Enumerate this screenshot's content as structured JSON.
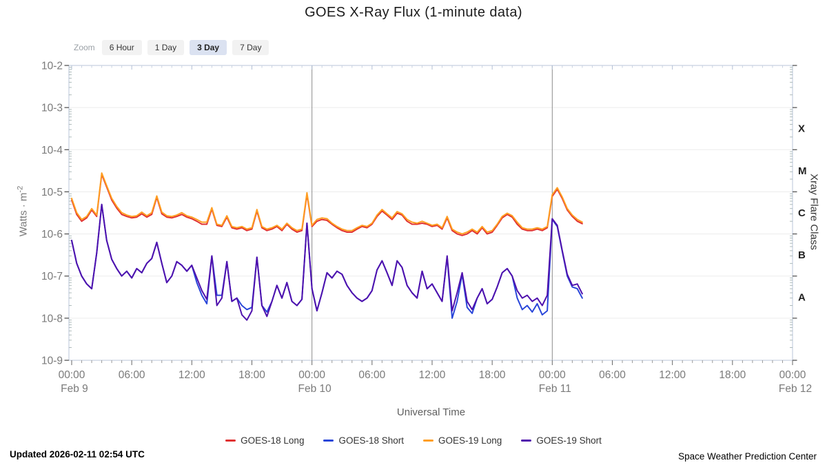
{
  "title": "GOES X-Ray Flux (1-minute data)",
  "zoom_controls": {
    "label": "Zoom",
    "options": [
      "6 Hour",
      "1 Day",
      "3 Day",
      "7 Day"
    ],
    "active": "3 Day"
  },
  "chart_data": {
    "type": "line",
    "title": "GOES X-Ray Flux (1-minute data)",
    "xlabel": "Universal Time",
    "ylabel": "Watts · m",
    "ylabel_exponent": "-2",
    "ylim": [
      1e-09,
      0.01
    ],
    "x_range_hours": [
      0,
      72
    ],
    "x_start_hours": 0,
    "x_step_hours": 0.5,
    "grid": "horizontal-decades",
    "legend_position": "bottom",
    "day_boundary_hours": [
      24,
      48
    ],
    "y_ticks": [
      {
        "label": "10-2",
        "exp": -2
      },
      {
        "label": "10-3",
        "exp": -3
      },
      {
        "label": "10-4",
        "exp": -4
      },
      {
        "label": "10-5",
        "exp": -5
      },
      {
        "label": "10-6",
        "exp": -6
      },
      {
        "label": "10-7",
        "exp": -7
      },
      {
        "label": "10-8",
        "exp": -8
      },
      {
        "label": "10-9",
        "exp": -9
      }
    ],
    "x_ticks": [
      {
        "hour": 0,
        "label": "00:00",
        "date": "Feb 9"
      },
      {
        "hour": 6,
        "label": "06:00"
      },
      {
        "hour": 12,
        "label": "12:00"
      },
      {
        "hour": 18,
        "label": "18:00"
      },
      {
        "hour": 24,
        "label": "00:00",
        "date": "Feb 10"
      },
      {
        "hour": 30,
        "label": "06:00"
      },
      {
        "hour": 36,
        "label": "12:00"
      },
      {
        "hour": 42,
        "label": "18:00"
      },
      {
        "hour": 48,
        "label": "00:00",
        "date": "Feb 11"
      },
      {
        "hour": 54,
        "label": "06:00"
      },
      {
        "hour": 60,
        "label": "12:00"
      },
      {
        "hour": 66,
        "label": "18:00"
      },
      {
        "hour": 72,
        "label": "00:00",
        "date": "Feb 12"
      }
    ],
    "right_axis": {
      "label": "Xray Flare Class",
      "classes": [
        {
          "label": "X",
          "log_center": -3.5
        },
        {
          "label": "M",
          "log_center": -4.5
        },
        {
          "label": "C",
          "log_center": -5.5
        },
        {
          "label": "B",
          "log_center": -6.5
        },
        {
          "label": "A",
          "log_center": -7.5
        }
      ]
    },
    "series": [
      {
        "name": "GOES-18 Long",
        "color": "#e03131",
        "values": [
          6.4e-06,
          2.9e-06,
          2e-06,
          2.4e-06,
          3.7e-06,
          2.6e-06,
          2.6e-05,
          1.3e-05,
          6.4e-06,
          4.1e-06,
          2.9e-06,
          2.6e-06,
          2.4e-06,
          2.5e-06,
          3e-06,
          2.5e-06,
          2.9e-06,
          7.4e-06,
          3e-06,
          2.5e-06,
          2.4e-06,
          2.6e-06,
          2.9e-06,
          2.5e-06,
          2.3e-06,
          2e-06,
          1.7e-06,
          1.7e-06,
          3.9e-06,
          1.6e-06,
          1.5e-06,
          2.5e-06,
          1.4e-06,
          1.3e-06,
          1.4e-06,
          1.2e-06,
          1.3e-06,
          3.5e-06,
          1.4e-06,
          1.2e-06,
          1.3e-06,
          1.5e-06,
          1.2e-06,
          1.7e-06,
          1.3e-06,
          1.1e-06,
          1.2e-06,
          8.7e-06,
          1.5e-06,
          2e-06,
          2.2e-06,
          2.1e-06,
          1.7e-06,
          1.4e-06,
          1.2e-06,
          1.1e-06,
          1.1e-06,
          1.3e-06,
          1.5e-06,
          1.4e-06,
          1.7e-06,
          2.6e-06,
          3.5e-06,
          2.8e-06,
          2.2e-06,
          3.1e-06,
          2.8e-06,
          2e-06,
          1.7e-06,
          1.7e-06,
          1.8e-06,
          1.7e-06,
          1.5e-06,
          1.6e-06,
          1.3e-06,
          2.4e-06,
          1.2e-06,
          1e-06,
          9.2e-07,
          1e-06,
          1.2e-06,
          1e-06,
          1.4e-06,
          1e-06,
          1.1e-06,
          1.6e-06,
          2.4e-06,
          2.9e-06,
          2.5e-06,
          1.7e-06,
          1.3e-06,
          1.2e-06,
          1.2e-06,
          1.3e-06,
          1.2e-06,
          1.4e-06,
          7.8e-06,
          1.15e-05,
          6.9e-06,
          3.7e-06,
          2.6e-06,
          2e-06,
          1.75e-06
        ]
      },
      {
        "name": "GOES-18 Short",
        "color": "#2946d9",
        "values": [
          7e-07,
          2e-07,
          1e-07,
          6.5e-08,
          5e-08,
          3.5e-07,
          5e-06,
          7e-07,
          2.5e-07,
          1.5e-07,
          1e-07,
          1.3e-07,
          9e-08,
          1.5e-07,
          1.2e-07,
          2e-07,
          2.6e-07,
          6.3e-07,
          2e-07,
          7e-08,
          1e-07,
          2.2e-07,
          1.8e-07,
          1.3e-07,
          1.8e-07,
          7e-08,
          3.5e-08,
          2.2e-08,
          3e-07,
          3.5e-08,
          3.5e-08,
          2.2e-07,
          2.5e-08,
          3e-08,
          2e-08,
          1.6e-08,
          1.8e-08,
          2.8e-07,
          2e-08,
          1.4e-08,
          2.5e-08,
          6e-08,
          3e-08,
          7e-08,
          2.5e-08,
          2e-08,
          2.8e-08,
          1.8e-06,
          5e-08,
          1.5e-08,
          4e-08,
          1.2e-07,
          9e-08,
          1.3e-07,
          1.1e-07,
          6e-08,
          4e-08,
          3e-08,
          2.5e-08,
          3e-08,
          4.5e-08,
          1.4e-07,
          2.3e-07,
          1.2e-07,
          6e-08,
          2.3e-07,
          1.6e-07,
          6e-08,
          4e-08,
          3e-08,
          1.3e-07,
          5e-08,
          6.5e-08,
          4e-08,
          2.5e-08,
          2.8e-07,
          1e-08,
          2.5e-08,
          1.1e-07,
          1.8e-08,
          1.3e-08,
          3e-08,
          5e-08,
          2.2e-08,
          2.8e-08,
          5.5e-08,
          1.2e-07,
          1.5e-07,
          1e-07,
          3e-08,
          1.6e-08,
          2e-08,
          1.4e-08,
          2.2e-08,
          1.2e-08,
          1.5e-08,
          2.2e-06,
          1.5e-06,
          3.8e-07,
          1e-07,
          5.5e-08,
          5e-08,
          3e-08
        ]
      },
      {
        "name": "GOES-19 Long",
        "color": "#ff9e21",
        "values": [
          7e-06,
          3.2e-06,
          2.2e-06,
          2.6e-06,
          4e-06,
          2.8e-06,
          2.8e-05,
          1.4e-05,
          7e-06,
          4.5e-06,
          3.2e-06,
          2.8e-06,
          2.6e-06,
          2.7e-06,
          3.3e-06,
          2.7e-06,
          3.2e-06,
          8e-06,
          3.3e-06,
          2.7e-06,
          2.6e-06,
          2.8e-06,
          3.2e-06,
          2.7e-06,
          2.5e-06,
          2.2e-06,
          1.9e-06,
          1.9e-06,
          4.2e-06,
          1.7e-06,
          1.6e-06,
          2.7e-06,
          1.5e-06,
          1.4e-06,
          1.5e-06,
          1.3e-06,
          1.4e-06,
          3.8e-06,
          1.5e-06,
          1.3e-06,
          1.4e-06,
          1.6e-06,
          1.3e-06,
          1.8e-06,
          1.4e-06,
          1.2e-06,
          1.3e-06,
          9.5e-06,
          1.6e-06,
          2.2e-06,
          2.4e-06,
          2.3e-06,
          1.8e-06,
          1.5e-06,
          1.3e-06,
          1.2e-06,
          1.2e-06,
          1.4e-06,
          1.6e-06,
          1.5e-06,
          1.8e-06,
          2.8e-06,
          3.8e-06,
          3e-06,
          2.4e-06,
          3.4e-06,
          3e-06,
          2.2e-06,
          1.9e-06,
          1.8e-06,
          2e-06,
          1.8e-06,
          1.6e-06,
          1.7e-06,
          1.4e-06,
          2.6e-06,
          1.3e-06,
          1.1e-06,
          1e-06,
          1.1e-06,
          1.3e-06,
          1.1e-06,
          1.5e-06,
          1.1e-06,
          1.2e-06,
          1.7e-06,
          2.6e-06,
          3.1e-06,
          2.7e-06,
          1.9e-06,
          1.4e-06,
          1.3e-06,
          1.3e-06,
          1.4e-06,
          1.3e-06,
          1.5e-06,
          8.5e-06,
          1.25e-05,
          7.5e-06,
          4e-06,
          2.8e-06,
          2.2e-06,
          1.9e-06
        ]
      },
      {
        "name": "GOES-19 Short",
        "color": "#4f11ad",
        "values": [
          7e-07,
          2e-07,
          1e-07,
          6.5e-08,
          5e-08,
          3.5e-07,
          5e-06,
          7e-07,
          2.5e-07,
          1.5e-07,
          1e-07,
          1.3e-07,
          9e-08,
          1.5e-07,
          1.2e-07,
          2e-07,
          2.6e-07,
          6.3e-07,
          2e-07,
          7e-08,
          1e-07,
          2.2e-07,
          1.8e-07,
          1.3e-07,
          1.8e-07,
          9e-08,
          4.5e-08,
          2.8e-08,
          3e-07,
          2e-08,
          3e-08,
          2.2e-07,
          2.5e-08,
          3e-08,
          1.2e-08,
          9e-09,
          1.5e-08,
          2.8e-07,
          2e-08,
          1.1e-08,
          2.5e-08,
          6e-08,
          3e-08,
          7e-08,
          2.5e-08,
          2e-08,
          2.8e-08,
          1.8e-06,
          5e-08,
          1.5e-08,
          4e-08,
          1.2e-07,
          9e-08,
          1.3e-07,
          1.1e-07,
          6e-08,
          4e-08,
          3e-08,
          2.5e-08,
          3e-08,
          4.5e-08,
          1.4e-07,
          2.3e-07,
          1.2e-07,
          6e-08,
          2.3e-07,
          1.6e-07,
          6e-08,
          4e-08,
          3e-08,
          1.3e-07,
          5e-08,
          6.5e-08,
          4e-08,
          2.5e-08,
          3e-07,
          1.5e-08,
          4e-08,
          1.2e-07,
          2.5e-08,
          1.6e-08,
          3e-08,
          5e-08,
          2.2e-08,
          2.8e-08,
          5.5e-08,
          1.2e-07,
          1.5e-07,
          1e-07,
          4.5e-08,
          3e-08,
          3.5e-08,
          2.5e-08,
          3e-08,
          2e-08,
          3.5e-08,
          2.3e-06,
          1.6e-06,
          4e-07,
          1.1e-07,
          6e-08,
          6.5e-08,
          3.8e-08
        ]
      }
    ]
  },
  "legend": {
    "items": [
      {
        "label": "GOES-18 Long",
        "color": "#e03131"
      },
      {
        "label": "GOES-18 Short",
        "color": "#2946d9"
      },
      {
        "label": "GOES-19 Long",
        "color": "#ff9e21"
      },
      {
        "label": "GOES-19 Short",
        "color": "#4f11ad"
      }
    ]
  },
  "footer": {
    "updated": "Updated 2026-02-11 02:54 UTC",
    "source": "Space Weather Prediction Center"
  }
}
